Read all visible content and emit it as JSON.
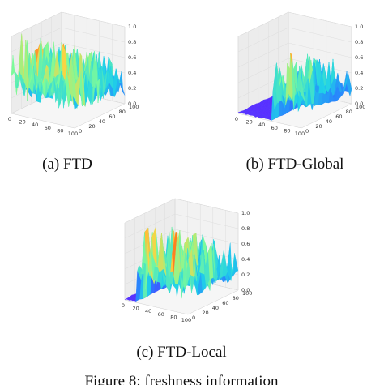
{
  "figure": {
    "caption": "Figure 8: freshness information"
  },
  "chart_data": [
    {
      "type": "surface3d",
      "caption": "(a) FTD",
      "x_ticks": [
        "0",
        "20",
        "40",
        "60",
        "80",
        "100"
      ],
      "y_ticks": [
        "0",
        "20",
        "40",
        "60",
        "80",
        "100"
      ],
      "z_ticks": [
        "0.0",
        "0.2",
        "0.4",
        "0.6",
        "0.8",
        "1.0"
      ],
      "zlim": [
        0,
        1
      ],
      "colormap": [
        "#5a2cff",
        "#2a7cff",
        "#1fd1e8",
        "#7dfb9a",
        "#ffd23f",
        "#ff6a1a",
        "#d81e05"
      ],
      "active_x_range": [
        0,
        100
      ],
      "typical_height": 0.45,
      "peak_height": 1.0
    },
    {
      "type": "surface3d",
      "caption": "(b) FTD-Global",
      "x_ticks": [
        "0",
        "20",
        "40",
        "60",
        "80",
        "100"
      ],
      "y_ticks": [
        "0",
        "20",
        "40",
        "60",
        "80",
        "100"
      ],
      "z_ticks": [
        "0.0",
        "0.2",
        "0.4",
        "0.6",
        "0.8",
        "1.0"
      ],
      "zlim": [
        0,
        1
      ],
      "colormap": [
        "#5a2cff",
        "#2a7cff",
        "#1fd1e8",
        "#7dfb9a",
        "#ffd23f",
        "#ff6a1a",
        "#d81e05"
      ],
      "active_x_range": [
        55,
        100
      ],
      "typical_height": 0.35,
      "peak_height": 0.9
    },
    {
      "type": "surface3d",
      "caption": "(c) FTD-Local",
      "x_ticks": [
        "0",
        "20",
        "40",
        "60",
        "80",
        "100"
      ],
      "y_ticks": [
        "0",
        "20",
        "40",
        "60",
        "80",
        "100"
      ],
      "z_ticks": [
        "0.0",
        "0.2",
        "0.4",
        "0.6",
        "0.8",
        "1.0"
      ],
      "zlim": [
        0,
        1
      ],
      "colormap": [
        "#5a2cff",
        "#2a7cff",
        "#1fd1e8",
        "#7dfb9a",
        "#ffd23f",
        "#ff6a1a",
        "#d81e05"
      ],
      "active_x_range": [
        20,
        100
      ],
      "typical_height": 0.4,
      "peak_height": 1.0
    }
  ]
}
